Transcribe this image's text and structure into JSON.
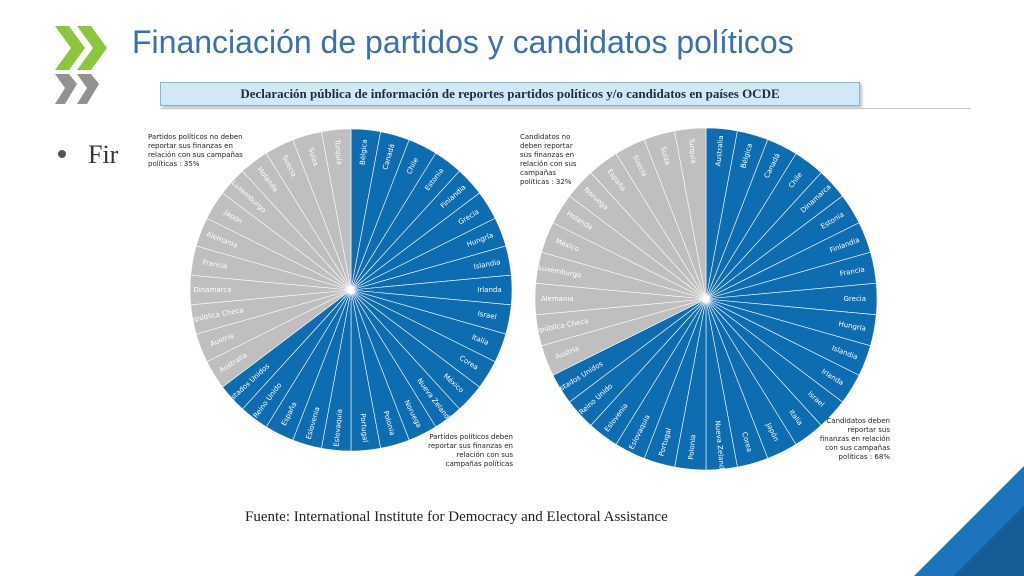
{
  "header": {
    "title": "Financiación de partidos y candidatos políticos",
    "subtitle": "Declaración pública de información de reportes partidos políticos y/o candidatos en países OCDE"
  },
  "bullet": {
    "text": "Fir"
  },
  "source": "Fuente: International Institute for Democracy and Electoral Assistance",
  "colors": {
    "title": "#3a6fb0",
    "blue": "#0e6cb1",
    "gray": "#bfbfbf",
    "logo_green": "#8cc63f",
    "logo_gray": "#7f7f7f",
    "corner": "#1c75bc"
  },
  "chart_data": [
    {
      "type": "pie",
      "categories": [
        "Bélgica",
        "Canadá",
        "Chile",
        "Estonia",
        "Finlandia",
        "Grecia",
        "Hungría",
        "Islandia",
        "Irlanda",
        "Israel",
        "Italia",
        "Corea",
        "México",
        "Nueva Zelanda",
        "Noruega",
        "Polonia",
        "Portugal",
        "Eslovaquia",
        "Eslovenia",
        "España",
        "Reino Unido",
        "Estados Unidos",
        "Australia",
        "Austria",
        "República Checa",
        "Dinamarca",
        "Francia",
        "Alemania",
        "Japón",
        "Luxemburgo",
        "Holanda",
        "Suecia",
        "Suiza",
        "Turquía"
      ],
      "values": [
        1,
        1,
        1,
        1,
        1,
        1,
        1,
        1,
        1,
        1,
        1,
        1,
        1,
        1,
        1,
        1,
        1,
        1,
        1,
        1,
        1,
        1,
        1,
        1,
        1,
        1,
        1,
        1,
        1,
        1,
        1,
        1,
        1,
        1
      ],
      "groups": [
        1,
        1,
        1,
        1,
        1,
        1,
        1,
        1,
        1,
        1,
        1,
        1,
        1,
        1,
        1,
        1,
        1,
        1,
        1,
        1,
        1,
        1,
        0,
        0,
        0,
        0,
        0,
        0,
        0,
        0,
        0,
        0,
        0,
        0
      ],
      "annotations": [
        {
          "text": "Partidos políticos no deben reportar sus finanzas en relación con sus campañas políticas : 35%",
          "group": 0
        },
        {
          "text": "Partidos políticos deben reportar sus finanzas en relación con sus campañas políticas",
          "group": 1
        }
      ]
    },
    {
      "type": "pie",
      "categories": [
        "Australia",
        "Bélgica",
        "Canadá",
        "Chile",
        "Dinamarca",
        "Estonia",
        "Finlandia",
        "Francia",
        "Grecia",
        "Hungría",
        "Islandia",
        "Irlanda",
        "Israel",
        "Italia",
        "Japón",
        "Corea",
        "Nueva Zelanda",
        "Polonia",
        "Portugal",
        "Eslovaquia",
        "Eslovenia",
        "Reino Unido",
        "Estados Unidos",
        "Austria",
        "República Checa",
        "Alemania",
        "Luxemburgo",
        "México",
        "Holanda",
        "Noruega",
        "España",
        "Suecia",
        "Suiza",
        "Turquía"
      ],
      "values": [
        1,
        1,
        1,
        1,
        1,
        1,
        1,
        1,
        1,
        1,
        1,
        1,
        1,
        1,
        1,
        1,
        1,
        1,
        1,
        1,
        1,
        1,
        1,
        1,
        1,
        1,
        1,
        1,
        1,
        1,
        1,
        1,
        1,
        1
      ],
      "groups": [
        1,
        1,
        1,
        1,
        1,
        1,
        1,
        1,
        1,
        1,
        1,
        1,
        1,
        1,
        1,
        1,
        1,
        1,
        1,
        1,
        1,
        1,
        1,
        0,
        0,
        0,
        0,
        0,
        0,
        0,
        0,
        0,
        0,
        0
      ],
      "annotations": [
        {
          "text": "Candidatos no deben reportar sus finanzas en relación con sus campañas políticas : 32%",
          "group": 0
        },
        {
          "text": "Candidatos deben reportar sus finanzas en relación con sus campañas políticas : 68%",
          "group": 1
        }
      ]
    }
  ]
}
